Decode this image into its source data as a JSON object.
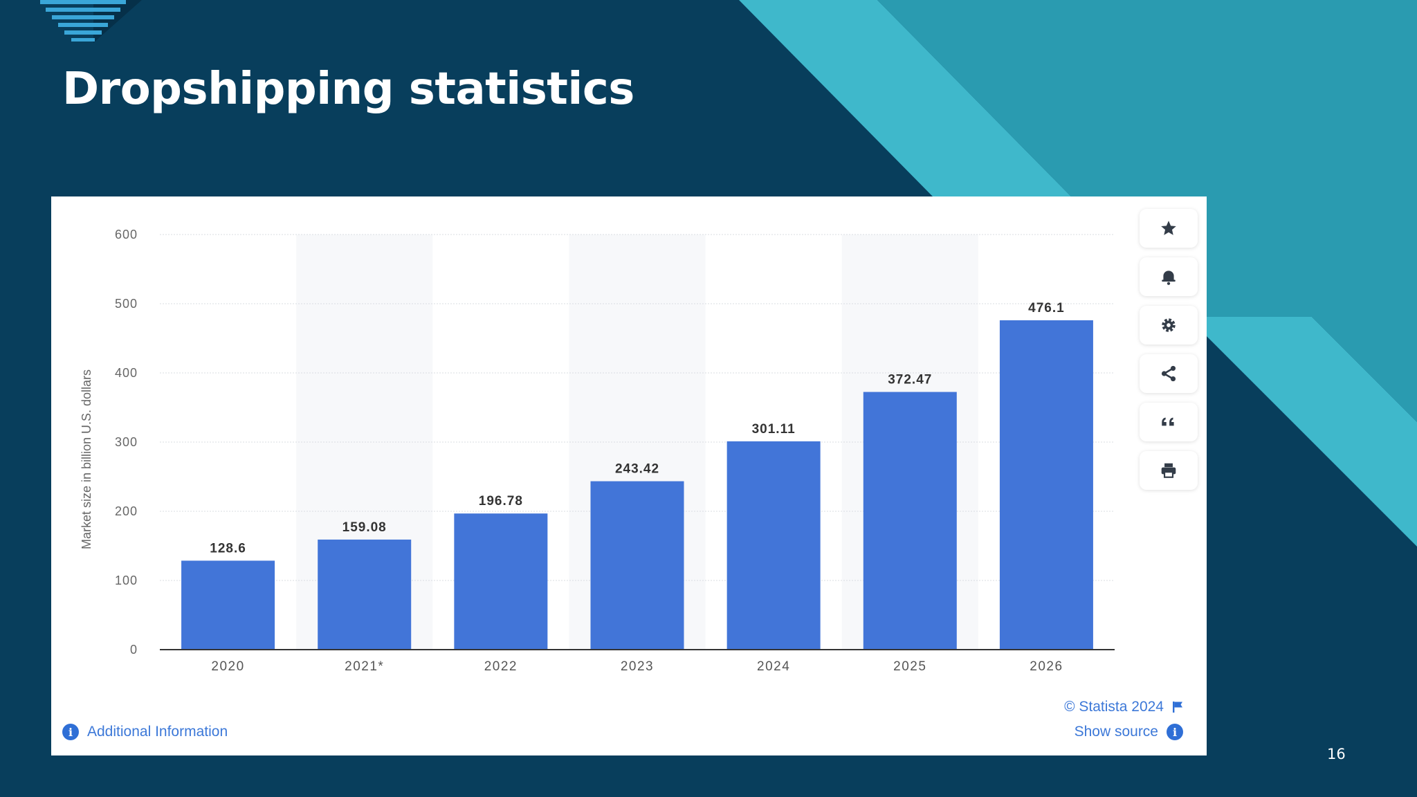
{
  "slide": {
    "title": "Dropshipping statistics",
    "page_number": "16"
  },
  "colors": {
    "background": "#083e5c",
    "accent_light": "#3fb8cb",
    "accent_mid": "#2a9bb0",
    "bar": "#4275d8",
    "card": "#ffffff"
  },
  "chart_data": {
    "type": "bar",
    "categories": [
      "2020",
      "2021*",
      "2022",
      "2023",
      "2024",
      "2025",
      "2026"
    ],
    "values": [
      128.6,
      159.08,
      196.78,
      243.42,
      301.11,
      372.47,
      476.1
    ],
    "value_labels": [
      "128.6",
      "159.08",
      "196.78",
      "243.42",
      "301.11",
      "372.47",
      "476.1"
    ],
    "ylabel": "Market size in billion U.S. dollars",
    "ylim": [
      0,
      600
    ],
    "yticks": [
      "0",
      "100",
      "200",
      "300",
      "400",
      "500",
      "600"
    ],
    "grid": true,
    "legend": "none"
  },
  "toolbar": {
    "icons": [
      "star-icon",
      "bell-icon",
      "gear-icon",
      "share-icon",
      "quote-icon",
      "print-icon"
    ]
  },
  "footer": {
    "additional_info": "Additional Information",
    "copyright": "© Statista 2024",
    "show_source": "Show source",
    "info_glyph": "i"
  }
}
